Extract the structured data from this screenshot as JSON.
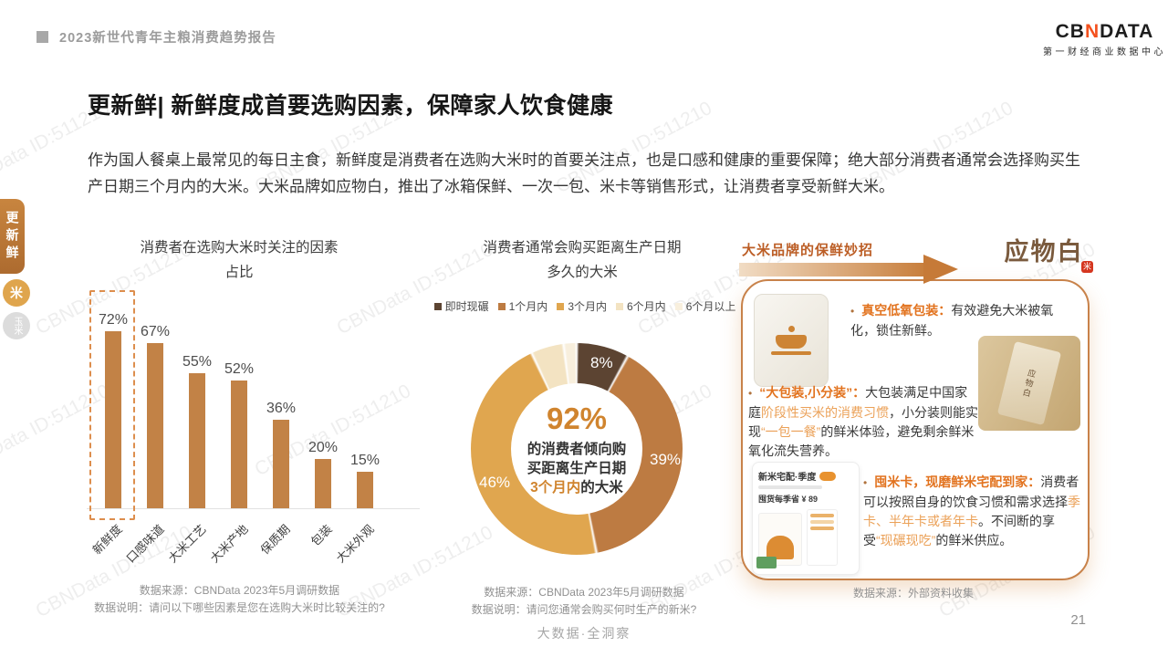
{
  "watermark": "CBNData ID:511210",
  "header": {
    "report_title": "2023新世代青年主粮消费趋势报告",
    "logo": {
      "part1": "CB",
      "part2": "N",
      "part3": "DATA",
      "subtitle": "第一财经商业数据中心"
    }
  },
  "sidebar": {
    "active_tab": "更新鲜",
    "badge_rice": "米",
    "badge_corn": "玉米"
  },
  "main": {
    "title": "更新鲜| 新鲜度成首要选购因素，保障家人饮食健康",
    "intro": "作为国人餐桌上最常见的每日主食，新鲜度是消费者在选购大米时的首要关注点，也是口感和健康的重要保障；绝大部分消费者通常会选择购买生产日期三个月内的大米。大米品牌如应物白，推出了冰箱保鲜、一次一包、米卡等销售形式，让消费者享受新鲜大米。"
  },
  "chart_data": [
    {
      "type": "bar",
      "title_line1": "消费者在选购大米时关注的因素",
      "title_line2": "占比",
      "categories": [
        "新鲜度",
        "口感味道",
        "大米工艺",
        "大米产地",
        "保质期",
        "包装",
        "大米外观"
      ],
      "values": [
        72,
        67,
        55,
        52,
        36,
        20,
        15
      ],
      "value_labels": [
        "72%",
        "67%",
        "55%",
        "52%",
        "36%",
        "20%",
        "15%"
      ],
      "unit": "%",
      "bar_color": "#c28246",
      "highlight_index": 0,
      "ylim": [
        0,
        80
      ],
      "grid": false,
      "source": "数据来源：CBNData 2023年5月调研数据",
      "note": "数据说明：请问以下哪些因素是您在选购大米时比较关注的?"
    },
    {
      "type": "pie",
      "subtype": "donut",
      "title_line1": "消费者通常会购买距离生产日期",
      "title_line2": "多久的大米",
      "legend": [
        "即时现碾",
        "1个月内",
        "3个月内",
        "6个月内",
        "6个月以上"
      ],
      "values": [
        8,
        39,
        46,
        5,
        2
      ],
      "colors": [
        "#5c4432",
        "#bd7b42",
        "#e0a64f",
        "#f3e3c2",
        "#f8efdd"
      ],
      "slice_labels": [
        "8%",
        "39%",
        "46%"
      ],
      "legend_position": "top",
      "center": {
        "headline": "92%",
        "line1": "的消费者倾向购",
        "line2": "买距离生产日期",
        "line3_highlight": "3个月内",
        "line3_rest": "的大米"
      },
      "source": "数据来源：CBNData 2023年5月调研数据",
      "note": "数据说明：请问您通常会购买何时生产的新米?"
    }
  ],
  "brand_panel": {
    "heading": "大米品牌的保鲜妙招",
    "brand_name": "应物白",
    "brand_seal": "米",
    "items": [
      {
        "title": "真空低氧包装",
        "sep": "：",
        "body": [
          {
            "text": "有效避免大米被氧化，锁住新鲜。",
            "highlight": false
          }
        ]
      },
      {
        "title": "“大包装,小分装”",
        "sep": "：",
        "body": [
          {
            "text": "大包装满足中国家庭",
            "highlight": false
          },
          {
            "text": "阶段性买米的消费习惯",
            "highlight": true
          },
          {
            "text": "，小分装则能实现",
            "highlight": false
          },
          {
            "text": "“一包一餐”",
            "highlight": true
          },
          {
            "text": "的鲜米体验，避免剩余鲜米氧化流失营养。",
            "highlight": false
          }
        ]
      },
      {
        "title": "囤米卡，现磨鲜米宅配到家",
        "sep": "：",
        "body": [
          {
            "text": "消费者可以按照自身的饮食习惯和需求选择",
            "highlight": false
          },
          {
            "text": "季卡、半年卡或者年卡",
            "highlight": true
          },
          {
            "text": "。不间断的享受",
            "highlight": false
          },
          {
            "text": "“现碾现吃”",
            "highlight": true
          },
          {
            "text": "的鲜米供应。",
            "highlight": false
          }
        ]
      }
    ],
    "pack_label": "应物白",
    "card_image": {
      "title": "新米宅配·季度",
      "save_line": "囤货每季省 ¥ 89"
    },
    "source": "数据来源：外部资料收集"
  },
  "footer": {
    "center_label": "大数据·全洞察",
    "page_number": "21"
  }
}
